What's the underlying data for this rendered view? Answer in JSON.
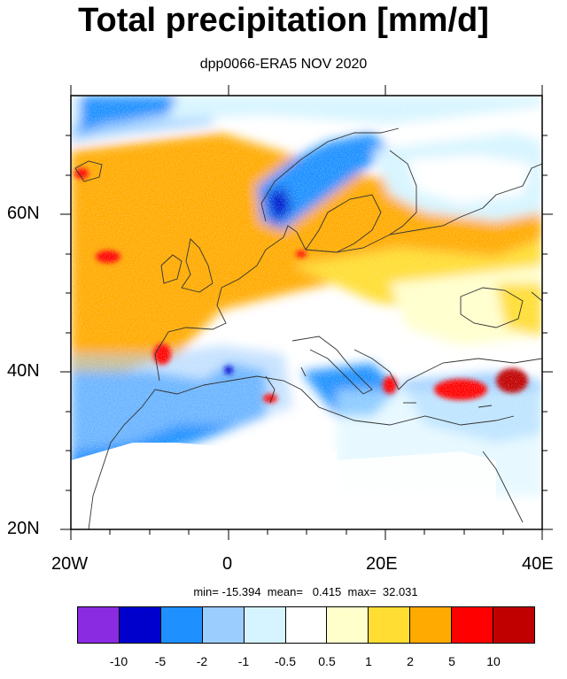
{
  "title": "Total precipitation [mm/d]",
  "subtitle": "dpp0066-ERA5 NOV 2020",
  "axes": {
    "lon_labels": [
      "20W",
      "0",
      "20E",
      "40E"
    ],
    "lat_labels": [
      "60N",
      "40N",
      "20N"
    ],
    "lon_range": [
      -20,
      40
    ],
    "lat_range": [
      20,
      76
    ]
  },
  "stats_text": "min= -15.394  mean=   0.415  max=  32.031",
  "colorbar": {
    "colors": [
      "#8a2be2",
      "#0000cd",
      "#1e90ff",
      "#9ccdff",
      "#d6f4ff",
      "#ffffff",
      "#ffffcc",
      "#ffdd33",
      "#ffaa00",
      "#ff0000",
      "#c00000"
    ],
    "tick_labels": [
      "-10",
      "-5",
      "-2",
      "-1",
      "-0.5",
      "0.5",
      "1",
      "2",
      "5",
      "10"
    ]
  }
}
